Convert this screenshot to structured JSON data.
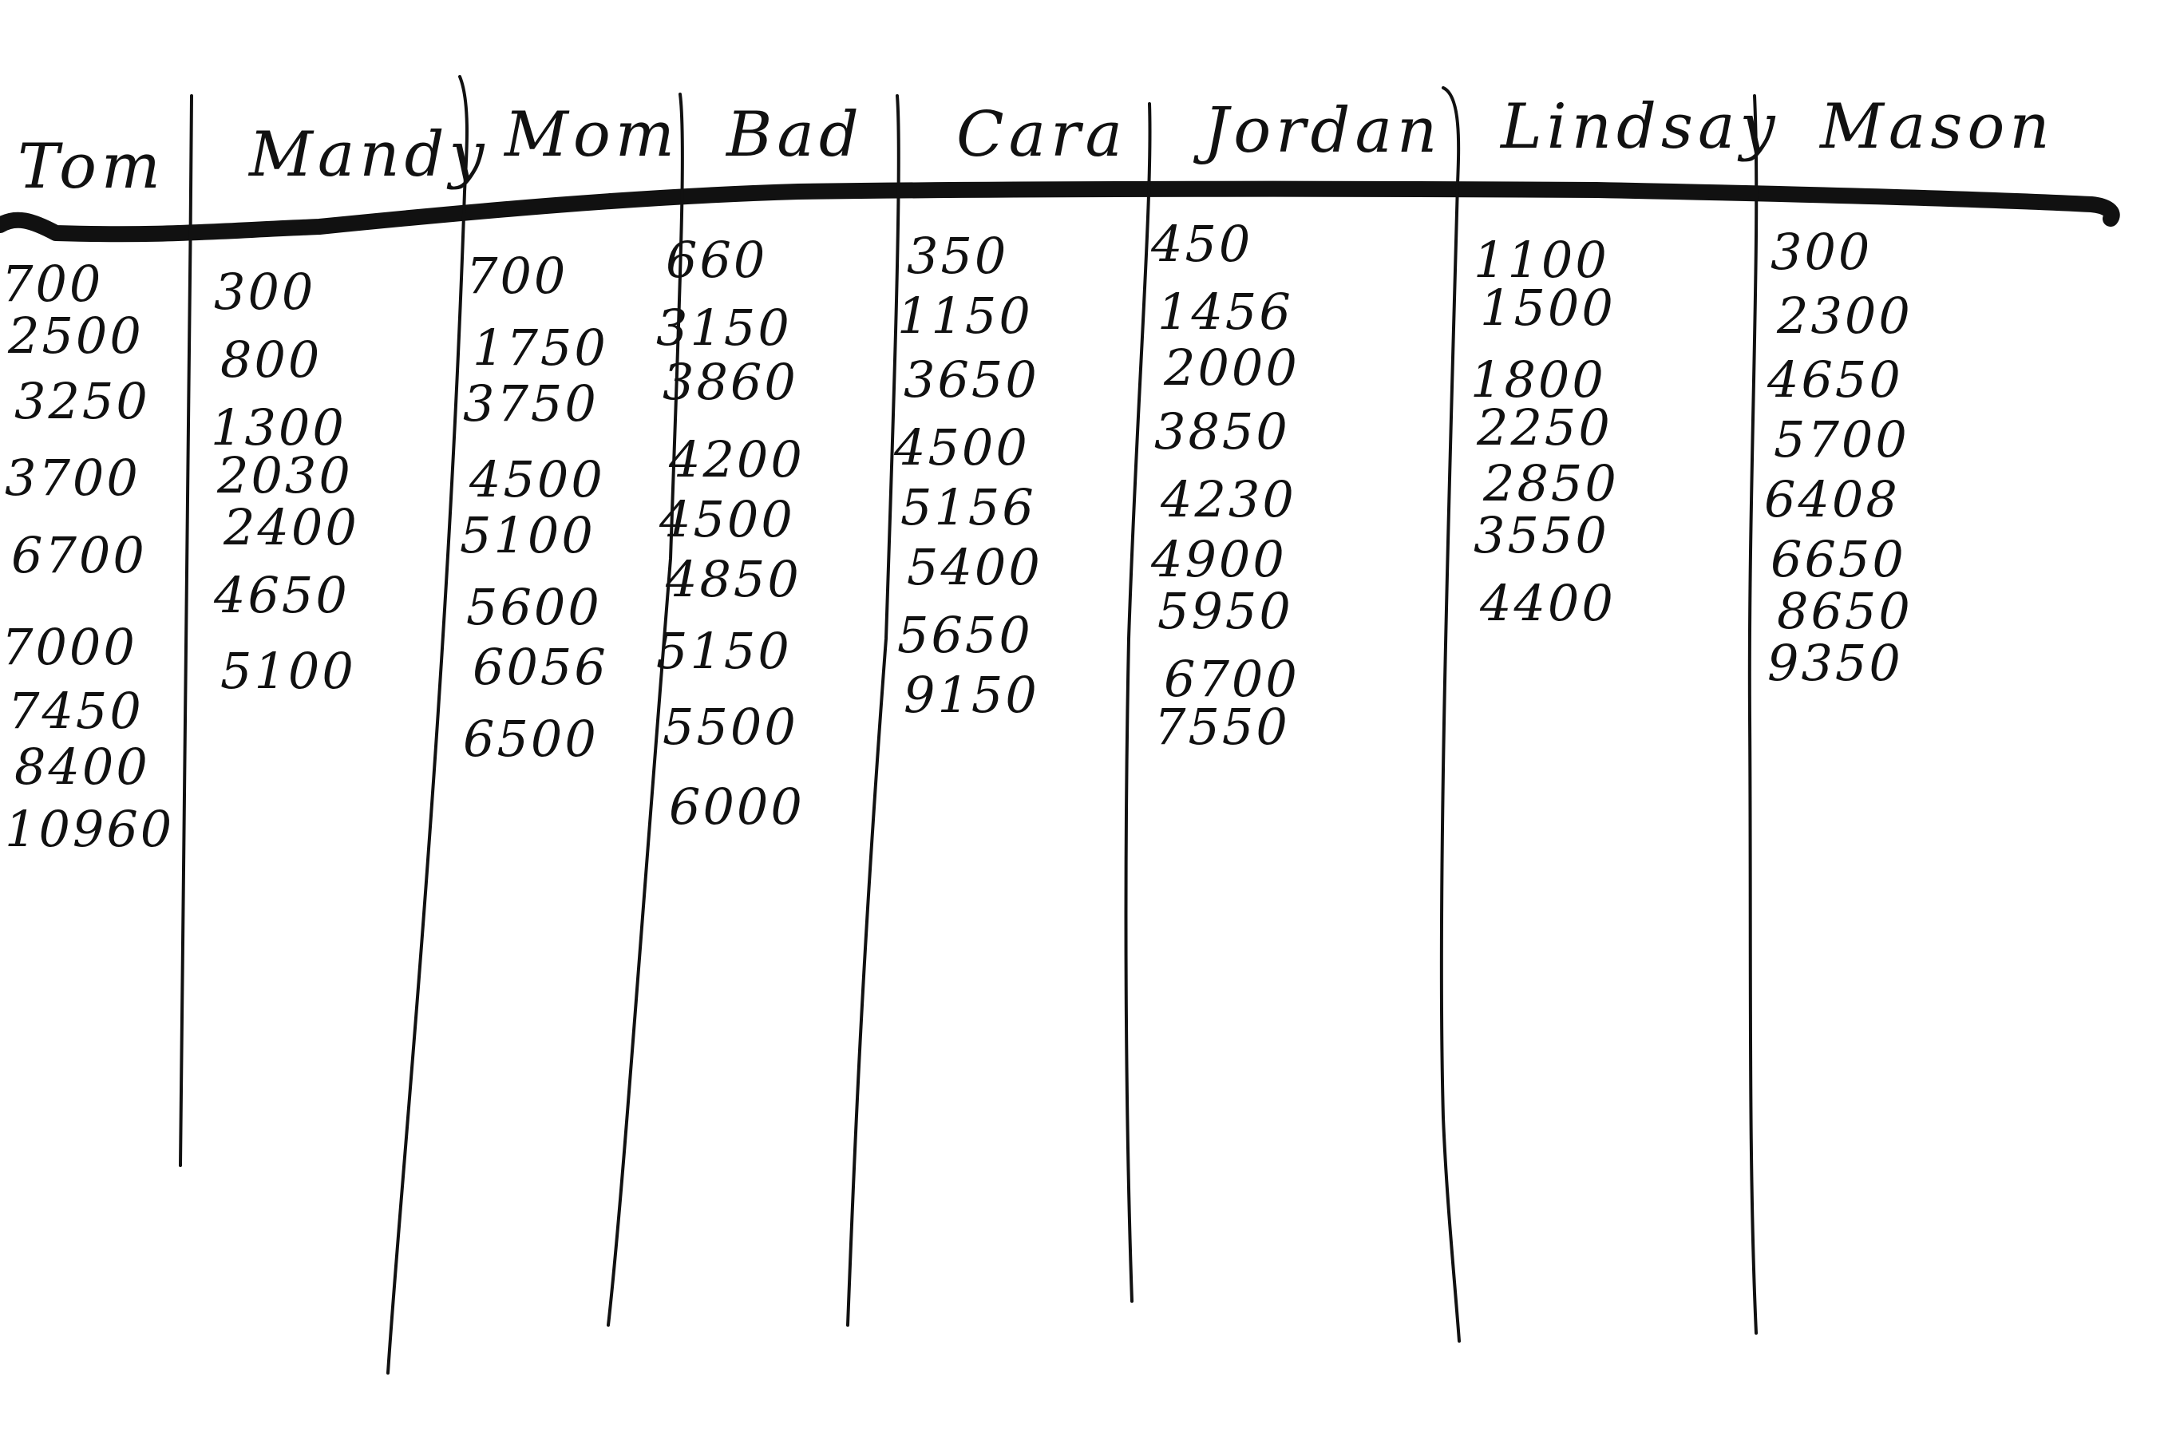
{
  "scoreboard": {
    "ink_color": "#111111",
    "paper_color": "#ffffff",
    "columns": [
      {
        "name": "Tom",
        "values": [
          "700",
          "2500",
          "3250",
          "3700",
          "6700",
          "7000",
          "7450",
          "8400",
          "10960"
        ]
      },
      {
        "name": "Mandy",
        "values": [
          "300",
          "800",
          "1300",
          "2030",
          "2400",
          "4650",
          "5100"
        ]
      },
      {
        "name": "Mom",
        "values": [
          "700",
          "1750",
          "3750",
          "4500",
          "5100",
          "5600",
          "6056",
          "6500"
        ]
      },
      {
        "name": "Bad",
        "values": [
          "660",
          "3150",
          "3860",
          "4200",
          "4500",
          "4850",
          "5150",
          "5500",
          "6000"
        ]
      },
      {
        "name": "Cara",
        "values": [
          "350",
          "1150",
          "3650",
          "4500",
          "5156",
          "5400",
          "5650",
          "9150"
        ]
      },
      {
        "name": "Jordan",
        "values": [
          "450",
          "1456",
          "2000",
          "3850",
          "4230",
          "4900",
          "5950",
          "6700",
          "7550"
        ]
      },
      {
        "name": "Lindsay",
        "values": [
          "1100",
          "1500",
          "1800",
          "2250",
          "2850",
          "3550",
          "4400"
        ]
      },
      {
        "name": "Mason",
        "values": [
          "300",
          "2300",
          "4650",
          "5700",
          "6408",
          "6650",
          "8650",
          "9350"
        ]
      }
    ]
  }
}
